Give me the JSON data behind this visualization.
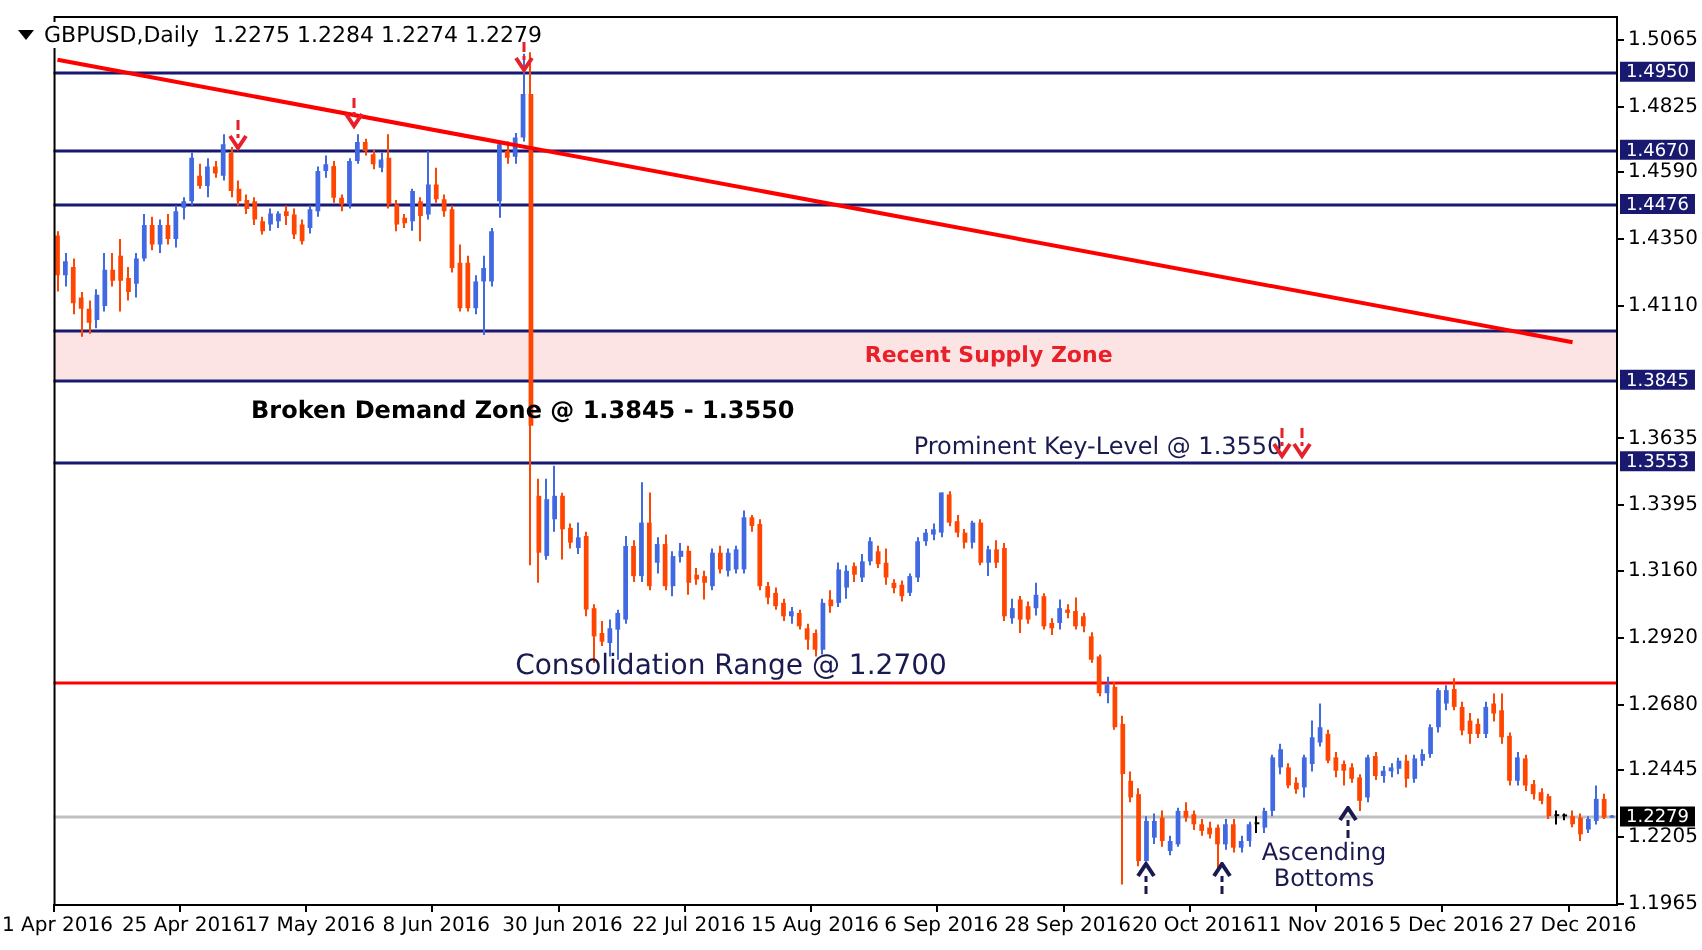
{
  "chart_data": {
    "type": "candlestick",
    "title": "GBPUSD,Daily  1.2275 1.2284 1.2274 1.2279",
    "annotations": [
      "Broken Demand Zone @ 1.3845 - 1.3550",
      "Prominent Key-Level @ 1.3550",
      "Consolidation Range @ 1.2700",
      "Ascending Bottoms"
    ],
    "categories": [
      "1 Apr 2016",
      null,
      null,
      null,
      null,
      null,
      null,
      null,
      null,
      null,
      null,
      null,
      null,
      null,
      null,
      null,
      "25 Apr 2016",
      null,
      null,
      null,
      null,
      null,
      null,
      null,
      null,
      null,
      null,
      null,
      null,
      null,
      null,
      null,
      "17 May 2016",
      null,
      null,
      null,
      null,
      null,
      null,
      null,
      null,
      null,
      null,
      null,
      null,
      null,
      null,
      null,
      "8 Jun 2016",
      null,
      null,
      null,
      null,
      null,
      null,
      null,
      null,
      null,
      null,
      null,
      null,
      null,
      null,
      null,
      "30 Jun 2016",
      null,
      null,
      null,
      null,
      null,
      null,
      null,
      null,
      null,
      null,
      null,
      null,
      null,
      null,
      null,
      "22 Jul 2016",
      null,
      null,
      null,
      null,
      null,
      null,
      null,
      null,
      null,
      null,
      null,
      null,
      null,
      null,
      null,
      "15 Aug 2016",
      null,
      null,
      null,
      null,
      null,
      null,
      null,
      null,
      null,
      null,
      null,
      null,
      null,
      null,
      null,
      "6 Sep 2016",
      null,
      null,
      null,
      null,
      null,
      null,
      null,
      null,
      null,
      null,
      null,
      null,
      null,
      null,
      null,
      "28 Sep 2016",
      null,
      null,
      null,
      null,
      null,
      null,
      null,
      null,
      null,
      null,
      null,
      null,
      null,
      null,
      null,
      "20 Oct 2016",
      null,
      null,
      null,
      null,
      null,
      null,
      null,
      null,
      null,
      null,
      null,
      null,
      null,
      null,
      null,
      "11 Nov 2016",
      null,
      null,
      null,
      null,
      null,
      null,
      null,
      null,
      null,
      null,
      null,
      null,
      null,
      null,
      null,
      "5 Dec 2016",
      null,
      null,
      null,
      null,
      null,
      null,
      null,
      null,
      null,
      null,
      null,
      null,
      null,
      null,
      null,
      "27 Dec 2016",
      null,
      null,
      null,
      null,
      null
    ],
    "ohlc": [
      [
        1.4363,
        1.4378,
        1.4162,
        1.422
      ],
      [
        1.422,
        1.43,
        1.418,
        1.427
      ],
      [
        1.425,
        1.428,
        1.408,
        1.412
      ],
      [
        1.414,
        1.416,
        1.4,
        1.41
      ],
      [
        1.41,
        1.413,
        1.401,
        1.405
      ],
      [
        1.406,
        1.417,
        1.403,
        1.415
      ],
      [
        1.411,
        1.43,
        1.409,
        1.424
      ],
      [
        1.424,
        1.43,
        1.418,
        1.42
      ],
      [
        1.429,
        1.435,
        1.409,
        1.42
      ],
      [
        1.421,
        1.425,
        1.413,
        1.416
      ],
      [
        1.419,
        1.43,
        1.414,
        1.428
      ],
      [
        1.428,
        1.444,
        1.427,
        1.44
      ],
      [
        1.44,
        1.443,
        1.431,
        1.433
      ],
      [
        1.433,
        1.442,
        1.43,
        1.44
      ],
      [
        1.44,
        1.444,
        1.433,
        1.435
      ],
      [
        1.435,
        1.447,
        1.432,
        1.445
      ],
      [
        1.4462,
        1.45,
        1.442,
        1.4486
      ],
      [
        1.4486,
        1.466,
        1.447,
        1.4642
      ],
      [
        1.4577,
        1.462,
        1.453,
        1.454
      ],
      [
        1.454,
        1.464,
        1.45,
        1.461
      ],
      [
        1.461,
        1.463,
        1.457,
        1.4585
      ],
      [
        1.4577,
        1.4726,
        1.456,
        1.469
      ],
      [
        1.4659,
        1.468,
        1.45,
        1.4522
      ],
      [
        1.453,
        1.456,
        1.447,
        1.4486
      ],
      [
        1.449,
        1.451,
        1.444,
        1.4458
      ],
      [
        1.4486,
        1.45,
        1.44,
        1.442
      ],
      [
        1.4414,
        1.443,
        1.4366,
        1.4378
      ],
      [
        1.4402,
        1.446,
        1.438,
        1.4442
      ],
      [
        1.4414,
        1.445,
        1.439,
        1.4442
      ],
      [
        1.445,
        1.447,
        1.44,
        1.4433
      ],
      [
        1.4438,
        1.446,
        1.435,
        1.4366
      ],
      [
        1.4402,
        1.442,
        1.433,
        1.4342
      ],
      [
        1.439,
        1.447,
        1.437,
        1.4457
      ],
      [
        1.445,
        1.461,
        1.443,
        1.4594
      ],
      [
        1.4594,
        1.465,
        1.457,
        1.4618
      ],
      [
        1.4612,
        1.463,
        1.448,
        1.4498
      ],
      [
        1.4498,
        1.451,
        1.445,
        1.4474
      ],
      [
        1.4474,
        1.464,
        1.446,
        1.463
      ],
      [
        1.463,
        1.4726,
        1.462,
        1.4698
      ],
      [
        1.4698,
        1.471,
        1.465,
        1.4666
      ],
      [
        1.4654,
        1.467,
        1.46,
        1.4618
      ],
      [
        1.4606,
        1.466,
        1.459,
        1.4635
      ],
      [
        1.4642,
        1.4726,
        1.446,
        1.4474
      ],
      [
        1.4474,
        1.449,
        1.4378,
        1.4402
      ],
      [
        1.4426,
        1.444,
        1.439,
        1.4407
      ],
      [
        1.4414,
        1.453,
        1.438,
        1.4522
      ],
      [
        1.4486,
        1.45,
        1.4342,
        1.4433
      ],
      [
        1.4438,
        1.4666,
        1.442,
        1.4546
      ],
      [
        1.4546,
        1.4606,
        1.448,
        1.4493
      ],
      [
        1.4493,
        1.451,
        1.443,
        1.445
      ],
      [
        1.4457,
        1.447,
        1.423,
        1.4246
      ],
      [
        1.4265,
        1.433,
        1.409,
        1.4102
      ],
      [
        1.4265,
        1.429,
        1.409,
        1.4102
      ],
      [
        1.4102,
        1.422,
        1.408,
        1.4198
      ],
      [
        1.4198,
        1.429,
        1.4006,
        1.4246
      ],
      [
        1.4198,
        1.439,
        1.418,
        1.4378
      ],
      [
        1.4486,
        1.47,
        1.4426,
        1.469
      ],
      [
        1.4666,
        1.47,
        1.462,
        1.4642
      ],
      [
        1.4645,
        1.473,
        1.462,
        1.4714
      ],
      [
        1.4714,
        1.5015,
        1.47,
        1.487
      ],
      [
        1.487,
        1.502,
        1.318,
        1.368
      ],
      [
        1.3429,
        1.349,
        1.3117,
        1.3225
      ],
      [
        1.3213,
        1.349,
        1.32,
        1.3417
      ],
      [
        1.3345,
        1.3537,
        1.33,
        1.3429
      ],
      [
        1.3429,
        1.344,
        1.3201,
        1.3309
      ],
      [
        1.3314,
        1.333,
        1.324,
        1.3261
      ],
      [
        1.3242,
        1.3333,
        1.322,
        1.328
      ],
      [
        1.3285,
        1.33,
        1.2997,
        1.3021
      ],
      [
        1.3026,
        1.304,
        1.2829,
        1.2925
      ],
      [
        1.2937,
        1.298,
        1.289,
        1.2906
      ],
      [
        1.2901,
        1.2985,
        1.2853,
        1.2954
      ],
      [
        1.2949,
        1.302,
        1.2841,
        1.3009
      ],
      [
        1.2985,
        1.3285,
        1.297,
        1.3249
      ],
      [
        1.3249,
        1.327,
        1.312,
        1.3141
      ],
      [
        1.3141,
        1.3478,
        1.312,
        1.3333
      ],
      [
        1.3333,
        1.3441,
        1.309,
        1.3105
      ],
      [
        1.3189,
        1.328,
        1.315,
        1.3256
      ],
      [
        1.3256,
        1.329,
        1.309,
        1.3105
      ],
      [
        1.3105,
        1.323,
        1.3069,
        1.3213
      ],
      [
        1.321,
        1.326,
        1.319,
        1.3232
      ],
      [
        1.3232,
        1.325,
        1.3074,
        1.3117
      ],
      [
        1.3146,
        1.317,
        1.311,
        1.3129
      ],
      [
        1.3141,
        1.316,
        1.3057,
        1.3117
      ],
      [
        1.3105,
        1.324,
        1.309,
        1.3225
      ],
      [
        1.3225,
        1.325,
        1.315,
        1.3165
      ],
      [
        1.316,
        1.324,
        1.314,
        1.3225
      ],
      [
        1.3165,
        1.325,
        1.315,
        1.3237
      ],
      [
        1.3165,
        1.3376,
        1.315,
        1.3352
      ],
      [
        1.3352,
        1.336,
        1.33,
        1.3321
      ],
      [
        1.3328,
        1.3345,
        1.309,
        1.3105
      ],
      [
        1.3105,
        1.312,
        1.304,
        1.3064
      ],
      [
        1.3081,
        1.31,
        1.302,
        1.3033
      ],
      [
        1.3045,
        1.306,
        1.298,
        1.2997
      ],
      [
        1.2997,
        1.303,
        1.297,
        1.3015
      ],
      [
        1.3009,
        1.302,
        1.295,
        1.2961
      ],
      [
        1.2954,
        1.297,
        1.2877,
        1.2913
      ],
      [
        1.2937,
        1.295,
        1.2853,
        1.2877
      ],
      [
        1.2877,
        1.306,
        1.286,
        1.3045
      ],
      [
        1.3057,
        1.309,
        1.301,
        1.3033
      ],
      [
        1.3045,
        1.319,
        1.303,
        1.3165
      ],
      [
        1.31,
        1.318,
        1.306,
        1.316
      ],
      [
        1.3177,
        1.319,
        1.312,
        1.3146
      ],
      [
        1.3136,
        1.322,
        1.312,
        1.3194
      ],
      [
        1.3194,
        1.328,
        1.318,
        1.3266
      ],
      [
        1.323,
        1.325,
        1.317,
        1.3184
      ],
      [
        1.3189,
        1.324,
        1.311,
        1.3136
      ],
      [
        1.3117,
        1.313,
        1.308,
        1.3098
      ],
      [
        1.311,
        1.3125,
        1.305,
        1.3069
      ],
      [
        1.3081,
        1.315,
        1.307,
        1.3141
      ],
      [
        1.3136,
        1.328,
        1.312,
        1.3266
      ],
      [
        1.3266,
        1.331,
        1.325,
        1.3297
      ],
      [
        1.329,
        1.333,
        1.327,
        1.3309
      ],
      [
        1.3297,
        1.3441,
        1.328,
        1.3441
      ],
      [
        1.3434,
        1.3445,
        1.332,
        1.3333
      ],
      [
        1.3338,
        1.336,
        1.328,
        1.3297
      ],
      [
        1.3297,
        1.331,
        1.324,
        1.3261
      ],
      [
        1.3261,
        1.334,
        1.324,
        1.3333
      ],
      [
        1.3333,
        1.3345,
        1.318,
        1.3189
      ],
      [
        1.3189,
        1.325,
        1.3141,
        1.3237
      ],
      [
        1.3237,
        1.327,
        1.317,
        1.3189
      ],
      [
        1.3242,
        1.326,
        1.298,
        1.2997
      ],
      [
        1.299,
        1.306,
        1.297,
        1.3026
      ],
      [
        1.3057,
        1.307,
        1.2937,
        1.2985
      ],
      [
        1.3033,
        1.305,
        1.297,
        1.2985
      ],
      [
        1.3026,
        1.3117,
        1.3,
        1.3074
      ],
      [
        1.3069,
        1.308,
        1.295,
        1.2961
      ],
      [
        1.2973,
        1.299,
        1.293,
        1.2954
      ],
      [
        1.2973,
        1.3057,
        1.295,
        1.3026
      ],
      [
        1.3021,
        1.304,
        1.299,
        1.3009
      ],
      [
        1.3016,
        1.3064,
        1.295,
        1.2961
      ],
      [
        1.2997,
        1.301,
        1.294,
        1.2961
      ],
      [
        1.2925,
        1.294,
        1.283,
        1.2841
      ],
      [
        1.2853,
        1.286,
        1.271,
        1.2721
      ],
      [
        1.2721,
        1.278,
        1.2685,
        1.2752
      ],
      [
        1.2744,
        1.276,
        1.259,
        1.2599
      ],
      [
        1.2611,
        1.264,
        1.2035,
        1.2431
      ],
      [
        1.2407,
        1.244,
        1.233,
        1.2347
      ],
      [
        1.2359,
        1.238,
        1.21,
        1.2119
      ],
      [
        1.2119,
        1.228,
        1.21,
        1.2263
      ],
      [
        1.2203,
        1.229,
        1.218,
        1.2263
      ],
      [
        1.2275,
        1.23,
        1.217,
        1.2191
      ],
      [
        1.2155,
        1.221,
        1.214,
        1.2191
      ],
      [
        1.2179,
        1.231,
        1.217,
        1.2299
      ],
      [
        1.2299,
        1.233,
        1.226,
        1.2275
      ],
      [
        1.2287,
        1.23,
        1.223,
        1.2251
      ],
      [
        1.2251,
        1.227,
        1.221,
        1.2227
      ],
      [
        1.2239,
        1.226,
        1.22,
        1.2215
      ],
      [
        1.2239,
        1.225,
        1.2083,
        1.2179
      ],
      [
        1.2179,
        1.227,
        1.216,
        1.2251
      ],
      [
        1.2251,
        1.227,
        1.215,
        1.2167
      ],
      [
        1.2167,
        1.221,
        1.215,
        1.2191
      ],
      [
        1.2191,
        1.226,
        1.217,
        1.2251
      ],
      [
        1.2251,
        1.228,
        1.222,
        1.2251
      ],
      [
        1.2239,
        1.231,
        1.222,
        1.2299
      ],
      [
        1.2299,
        1.25,
        1.228,
        1.2491
      ],
      [
        1.2455,
        1.254,
        1.243,
        1.252
      ],
      [
        1.2455,
        1.247,
        1.238,
        1.239
      ],
      [
        1.24,
        1.242,
        1.236,
        1.2376
      ],
      [
        1.2383,
        1.25,
        1.2347,
        1.2491
      ],
      [
        1.2467,
        1.2623,
        1.244,
        1.2563
      ],
      [
        1.2544,
        1.2684,
        1.253,
        1.2599
      ],
      [
        1.2575,
        1.259,
        1.247,
        1.2479
      ],
      [
        1.2491,
        1.251,
        1.242,
        1.2443
      ],
      [
        1.2467,
        1.248,
        1.239,
        1.2443
      ],
      [
        1.2455,
        1.247,
        1.24,
        1.2414
      ],
      [
        1.2419,
        1.243,
        1.2299,
        1.2335
      ],
      [
        1.2347,
        1.25,
        1.233,
        1.2491
      ],
      [
        1.2496,
        1.251,
        1.241,
        1.2424
      ],
      [
        1.2424,
        1.246,
        1.24,
        1.2443
      ],
      [
        1.2441,
        1.247,
        1.242,
        1.2455
      ],
      [
        1.245,
        1.249,
        1.243,
        1.2479
      ],
      [
        1.2479,
        1.25,
        1.2383,
        1.2414
      ],
      [
        1.2414,
        1.25,
        1.24,
        1.2487
      ],
      [
        1.2479,
        1.252,
        1.246,
        1.2503
      ],
      [
        1.2503,
        1.261,
        1.249,
        1.2599
      ],
      [
        1.2599,
        1.274,
        1.258,
        1.2732
      ],
      [
        1.2684,
        1.275,
        1.266,
        1.2732
      ],
      [
        1.2736,
        1.2775,
        1.266,
        1.2672
      ],
      [
        1.2672,
        1.269,
        1.257,
        1.2587
      ],
      [
        1.2623,
        1.265,
        1.254,
        1.2575
      ],
      [
        1.2611,
        1.263,
        1.256,
        1.2575
      ],
      [
        1.2575,
        1.269,
        1.256,
        1.2672
      ],
      [
        1.2684,
        1.272,
        1.262,
        1.2648
      ],
      [
        1.266,
        1.272,
        1.254,
        1.2563
      ],
      [
        1.2568,
        1.258,
        1.239,
        1.2407
      ],
      [
        1.2407,
        1.251,
        1.239,
        1.2491
      ],
      [
        1.2487,
        1.25,
        1.237,
        1.239
      ],
      [
        1.2395,
        1.241,
        1.234,
        1.2359
      ],
      [
        1.2366,
        1.238,
        1.2323,
        1.2335
      ],
      [
        1.2352,
        1.236,
        1.227,
        1.228
      ],
      [
        1.228,
        1.23,
        1.225,
        1.228
      ],
      [
        1.2279,
        1.229,
        1.2265,
        1.2279
      ],
      [
        1.228,
        1.23,
        1.224,
        1.2251
      ],
      [
        1.2275,
        1.229,
        1.2191,
        1.2215
      ],
      [
        1.2232,
        1.228,
        1.222,
        1.227
      ],
      [
        1.2263,
        1.239,
        1.225,
        1.2342
      ],
      [
        1.2342,
        1.236,
        1.227,
        1.2275
      ],
      [
        1.2275,
        1.2284,
        1.2274,
        1.2279
      ]
    ],
    "colors": [
      "#ff4500",
      "#4169e1",
      "#ff4500",
      "#ff4500",
      "#ff4500",
      "#4169e1",
      "#4169e1",
      "#ff4500",
      "#ff4500",
      "#ff4500",
      "#4169e1",
      "#4169e1",
      "#ff4500",
      "#4169e1",
      "#ff4500",
      "#4169e1",
      "#4169e1",
      "#4169e1",
      "#ff4500",
      "#4169e1",
      "#ff4500",
      "#4169e1",
      "#ff4500",
      "#ff4500",
      "#ff4500",
      "#ff4500",
      "#ff4500",
      "#4169e1",
      "#4169e1",
      "#ff4500",
      "#ff4500",
      "#ff4500",
      "#4169e1",
      "#4169e1",
      "#4169e1",
      "#ff4500",
      "#ff4500",
      "#4169e1",
      "#4169e1",
      "#ff4500",
      "#ff4500",
      "#4169e1",
      "#ff4500",
      "#ff4500",
      "#ff4500",
      "#4169e1",
      "#ff4500",
      "#4169e1",
      "#ff4500",
      "#ff4500",
      "#ff4500",
      "#ff4500",
      "#ff4500",
      "#4169e1",
      "#4169e1",
      "#4169e1",
      "#4169e1",
      "#ff4500",
      "#4169e1",
      "#4169e1",
      "#ff4500",
      "#ff4500",
      "#4169e1",
      "#4169e1",
      "#ff4500",
      "#ff4500",
      "#4169e1",
      "#ff4500",
      "#ff4500",
      "#ff4500",
      "#4169e1",
      "#4169e1",
      "#4169e1",
      "#ff4500",
      "#4169e1",
      "#ff4500",
      "#4169e1",
      "#ff4500",
      "#4169e1",
      "#4169e1",
      "#ff4500",
      "#ff4500",
      "#ff4500",
      "#4169e1",
      "#ff4500",
      "#4169e1",
      "#4169e1",
      "#4169e1",
      "#ff4500",
      "#ff4500",
      "#ff4500",
      "#ff4500",
      "#ff4500",
      "#4169e1",
      "#ff4500",
      "#ff4500",
      "#ff4500",
      "#4169e1",
      "#ff4500",
      "#4169e1",
      "#4169e1",
      "#ff4500",
      "#4169e1",
      "#4169e1",
      "#ff4500",
      "#ff4500",
      "#ff4500",
      "#ff4500",
      "#4169e1",
      "#4169e1",
      "#4169e1",
      "#4169e1",
      "#4169e1",
      "#ff4500",
      "#ff4500",
      "#ff4500",
      "#4169e1",
      "#ff4500",
      "#4169e1",
      "#ff4500",
      "#ff4500",
      "#4169e1",
      "#ff4500",
      "#ff4500",
      "#4169e1",
      "#ff4500",
      "#ff4500",
      "#4169e1",
      "#ff4500",
      "#ff4500",
      "#ff4500",
      "#ff4500",
      "#ff4500",
      "#4169e1",
      "#ff4500",
      "#ff4500",
      "#ff4500",
      "#ff4500",
      "#4169e1",
      "#4169e1",
      "#ff4500",
      "#4169e1",
      "#4169e1",
      "#ff4500",
      "#ff4500",
      "#ff4500",
      "#ff4500",
      "#ff4500",
      "#4169e1",
      "#ff4500",
      "#4169e1",
      "#4169e1",
      "#000000",
      "#4169e1",
      "#4169e1",
      "#4169e1",
      "#ff4500",
      "#ff4500",
      "#4169e1",
      "#4169e1",
      "#4169e1",
      "#ff4500",
      "#ff4500",
      "#ff4500",
      "#ff4500",
      "#ff4500",
      "#4169e1",
      "#ff4500",
      "#4169e1",
      "#4169e1",
      "#4169e1",
      "#ff4500",
      "#4169e1",
      "#4169e1",
      "#4169e1",
      "#4169e1",
      "#4169e1",
      "#ff4500",
      "#ff4500",
      "#ff4500",
      "#ff4500",
      "#4169e1",
      "#ff4500",
      "#ff4500",
      "#ff4500",
      "#4169e1",
      "#ff4500",
      "#ff4500",
      "#ff4500",
      "#ff4500",
      "#000000",
      "#000000",
      "#ff4500",
      "#ff4500",
      "#4169e1",
      "#4169e1",
      "#ff4500",
      "#4169e1"
    ],
    "series": [
      {
        "type": "line",
        "color": "#ff0000",
        "x": [
          "1 Apr 2016",
          "27 Dec 2016"
        ],
        "values": [
          1.4993,
          1.398
        ]
      }
    ],
    "ylim": [
      1.1965,
      1.515
    ],
    "yticks": [
      1.5065,
      1.4825,
      {
        "value": 1.459,
        "label": "1.4590"
      },
      {
        "value": 1.435,
        "label": "1.4350"
      },
      {
        "value": 1.411,
        "label": "1.4110"
      },
      1.3635,
      1.3395,
      {
        "value": 1.316,
        "label": "1.3160"
      },
      {
        "value": 1.292,
        "label": "1.2920"
      },
      {
        "value": 1.268,
        "label": "1.2680"
      },
      1.2445,
      1.2205,
      1.1965
    ],
    "ref_lines": [
      {
        "axis": "y",
        "value": 1.495,
        "label": "1.4950",
        "color": "#191970"
      },
      {
        "axis": "y",
        "value": 1.467,
        "label": "1.4670",
        "color": "#191970"
      },
      {
        "axis": "y",
        "value": 1.4476,
        "label": "1.4476",
        "color": "#191970"
      },
      {
        "axis": "y",
        "value": 1.4025,
        "color": "#191970"
      },
      {
        "axis": "y",
        "value": 1.3845,
        "label": "1.3845",
        "color": "#191970"
      },
      {
        "axis": "y",
        "value": 1.3553,
        "label": "1.3553",
        "color": "#191970"
      },
      {
        "axis": "y",
        "value": 1.276,
        "color": "#ff0000"
      },
      {
        "axis": "y",
        "value": 1.2279,
        "label": "1.2279",
        "color": "#c0c0c0"
      }
    ],
    "bands": [
      {
        "axis": "y",
        "from": 1.3845,
        "to": 1.4025,
        "label": "Recent Supply Zone",
        "color": "#fce4e4"
      }
    ]
  }
}
